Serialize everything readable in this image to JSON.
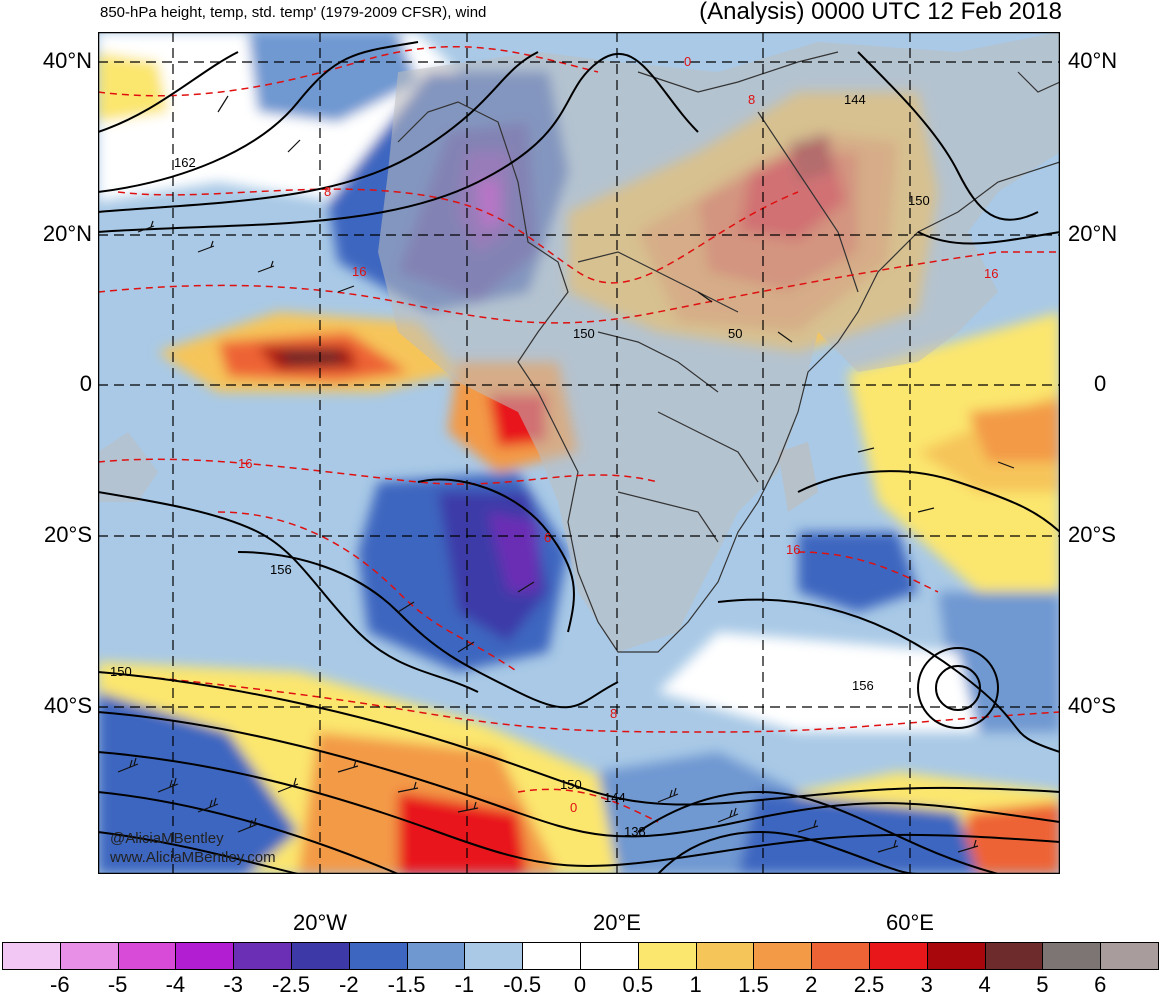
{
  "header": {
    "left_title": "850-hPa height, temp, std. temp' (1979-2009 CFSR), wind",
    "right_title": "(Analysis) 0000 UTC 12 Feb 2018"
  },
  "map": {
    "lat_labels": [
      "40°N",
      "20°N",
      "0",
      "20°S",
      "40°S"
    ],
    "lon_labels": [
      "20°W",
      "20°E",
      "60°E"
    ],
    "contour_labels_height": [
      "162",
      "144",
      "150",
      "150",
      "50",
      "156",
      "150",
      "156",
      "150",
      "144",
      "138"
    ],
    "contour_labels_temp": [
      "0",
      "8",
      "8",
      "16",
      "16",
      "16",
      "16",
      "6",
      "8",
      "0"
    ],
    "watermark_handle": "@AliciaMBentley",
    "watermark_url": "www.AliciaMBentley.com"
  },
  "colorbar": {
    "labels": [
      "-6",
      "-5",
      "-4",
      "-3",
      "-2.5",
      "-2",
      "-1.5",
      "-1",
      "-0.5",
      "0",
      "0.5",
      "1",
      "1.5",
      "2",
      "2.5",
      "3",
      "4",
      "5",
      "6"
    ],
    "colors": [
      "#f3c7f3",
      "#e88fe8",
      "#d84ad8",
      "#b21fd2",
      "#6a2fb5",
      "#3d3aa8",
      "#3d66c0",
      "#6f98d1",
      "#a9c9e6",
      "#ffffff",
      "#ffffff",
      "#fbe66e",
      "#f6c55a",
      "#f39a47",
      "#ee6336",
      "#e8181a",
      "#a8080c",
      "#6d2b2b",
      "#7d7474",
      "#a89c9c"
    ]
  }
}
